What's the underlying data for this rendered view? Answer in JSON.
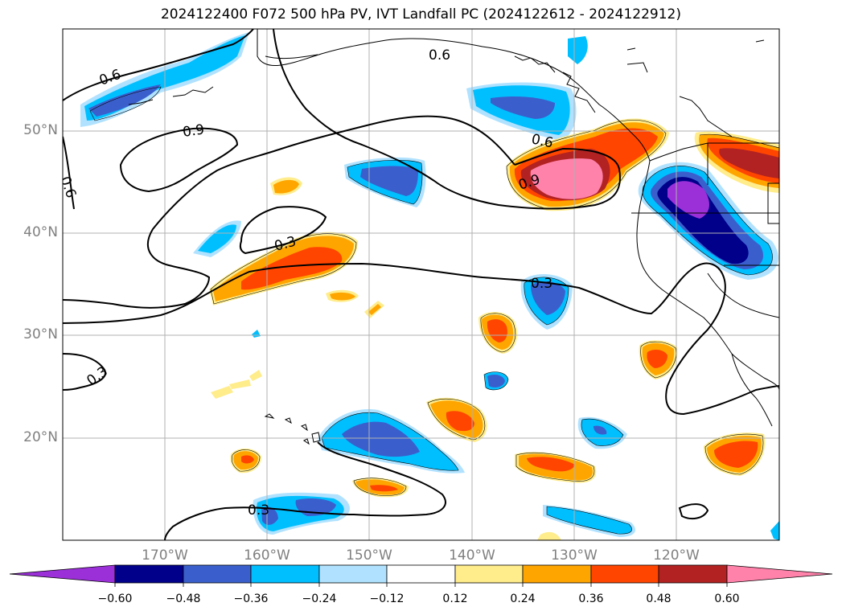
{
  "title": "2024122400 F072 500 hPa PV, IVT Landfall PC (2024122612 - 2024122912)",
  "lat_labels": [
    "50°N",
    "40°N",
    "30°N",
    "20°N"
  ],
  "lon_labels": [
    "170°W",
    "160°W",
    "150°W",
    "140°W",
    "130°W",
    "120°W"
  ],
  "contour_labels": [
    "0.6",
    "0.6",
    "0.6",
    "0.9",
    "0.9",
    "0.6",
    "0.3",
    "0.3",
    "0.3",
    "0.3"
  ],
  "colorbar": {
    "tick_labels": [
      "−0.60",
      "−0.48",
      "−0.36",
      "−0.24",
      "−0.12",
      "0.12",
      "0.24",
      "0.36",
      "0.48",
      "0.60"
    ],
    "colors": [
      "#9b30d9",
      "#00008b",
      "#3a5fcd",
      "#00bfff",
      "#b0e2ff",
      "#ffffff",
      "#ffec8b",
      "#ffa500",
      "#ff4500",
      "#b22222",
      "#ff82ab"
    ]
  },
  "colors": {
    "coast": "#000000",
    "grid": "#b0b0b0",
    "contour": "#000000"
  }
}
